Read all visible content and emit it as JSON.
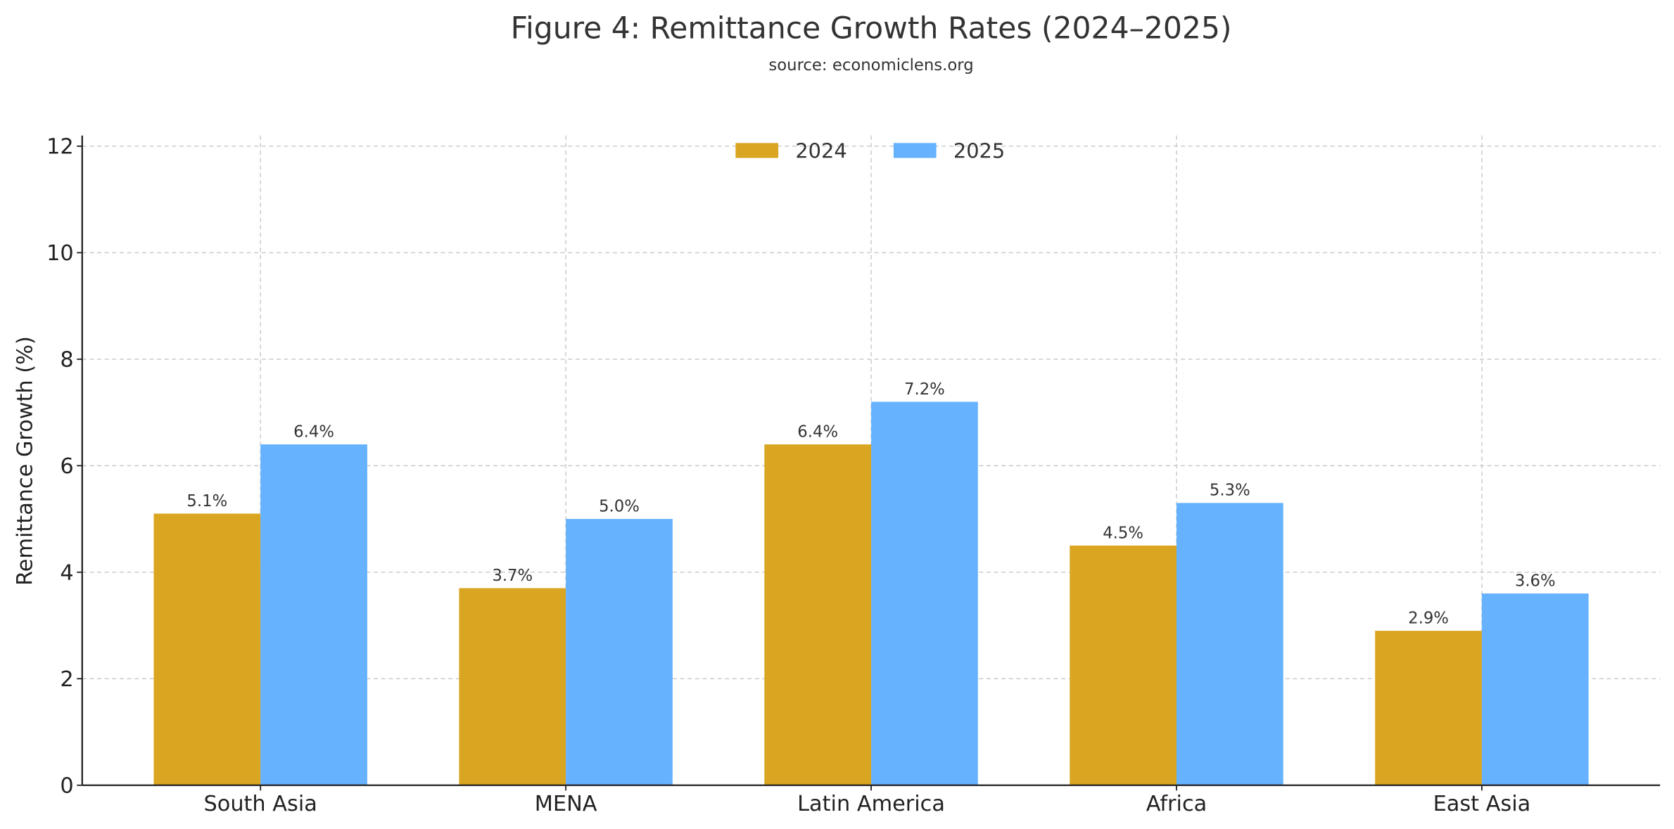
{
  "chart_data": {
    "type": "bar",
    "title": "Figure 4: Remittance Growth Rates (2024–2025)",
    "subtitle": "source: economiclens.org",
    "xlabel": "",
    "ylabel": "Remittance Growth (%)",
    "categories": [
      "South Asia",
      "MENA",
      "Latin America",
      "Africa",
      "East Asia"
    ],
    "series": [
      {
        "name": "2024",
        "color": "#DAA520",
        "values": [
          5.1,
          3.7,
          6.4,
          4.5,
          2.9
        ],
        "labels": [
          "5.1%",
          "3.7%",
          "6.4%",
          "4.5%",
          "2.9%"
        ]
      },
      {
        "name": "2025",
        "color": "#66B2FF",
        "values": [
          6.4,
          5.0,
          7.2,
          5.3,
          3.6
        ],
        "labels": [
          "6.4%",
          "5.0%",
          "7.2%",
          "5.3%",
          "3.6%"
        ]
      }
    ],
    "ylim": [
      0,
      12.2
    ],
    "yticks": [
      0,
      2,
      4,
      6,
      8,
      10,
      12
    ],
    "grid": true,
    "legend": "top-center"
  }
}
